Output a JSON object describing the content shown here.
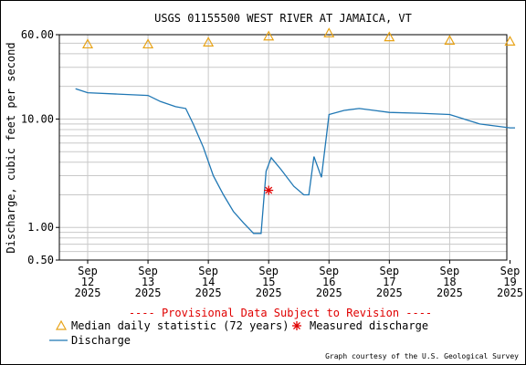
{
  "chart_data": {
    "type": "line",
    "title": "USGS 01155500 WEST RIVER AT JAMAICA, VT",
    "ylabel": "Discharge, cubic feet per second",
    "xlabel": "",
    "y_scale": "log",
    "ylim": [
      0.5,
      60
    ],
    "y_ticks": [
      "60.00",
      "10.00",
      "1.00",
      "0.50"
    ],
    "y_tick_values": [
      60,
      10,
      1,
      0.5
    ],
    "x_range": [
      "2025-09-12",
      "2025-09-19T10:00"
    ],
    "x_ticks": [
      {
        "date": "2025-09-12",
        "lines": [
          "Sep",
          "12",
          "2025"
        ]
      },
      {
        "date": "2025-09-13",
        "lines": [
          "Sep",
          "13",
          "2025"
        ]
      },
      {
        "date": "2025-09-14",
        "lines": [
          "Sep",
          "14",
          "2025"
        ]
      },
      {
        "date": "2025-09-15",
        "lines": [
          "Sep",
          "15",
          "2025"
        ]
      },
      {
        "date": "2025-09-16",
        "lines": [
          "Sep",
          "16",
          "2025"
        ]
      },
      {
        "date": "2025-09-17",
        "lines": [
          "Sep",
          "17",
          "2025"
        ]
      },
      {
        "date": "2025-09-18",
        "lines": [
          "Sep",
          "18",
          "2025"
        ]
      },
      {
        "date": "2025-09-19",
        "lines": [
          "Sep",
          "19",
          "2025"
        ]
      }
    ],
    "grid": true,
    "provisional_note": "---- Provisional Data Subject to Revision ----",
    "credit": "Graph courtesy of the U.S. Geological Survey",
    "legend_placement": "bottom",
    "series": [
      {
        "name": "Discharge",
        "color": "#1f77b4",
        "marker": "line",
        "points": [
          [
            "2025-09-11T19:10",
            19
          ],
          [
            "2025-09-12T00:00",
            17.5
          ],
          [
            "2025-09-12T12:00",
            17
          ],
          [
            "2025-09-13T00:00",
            16.5
          ],
          [
            "2025-09-13T05:00",
            14.5
          ],
          [
            "2025-09-13T11:00",
            13
          ],
          [
            "2025-09-13T15:00",
            12.5
          ],
          [
            "2025-09-13T18:00",
            9
          ],
          [
            "2025-09-13T22:00",
            5.5
          ],
          [
            "2025-09-14T02:00",
            3
          ],
          [
            "2025-09-14T06:00",
            2
          ],
          [
            "2025-09-14T10:00",
            1.4
          ],
          [
            "2025-09-14T14:00",
            1.1
          ],
          [
            "2025-09-14T18:00",
            0.88
          ],
          [
            "2025-09-14T21:00",
            0.88
          ],
          [
            "2025-09-14T23:00",
            3.3
          ],
          [
            "2025-09-15T01:00",
            4.4
          ],
          [
            "2025-09-15T05:00",
            3.4
          ],
          [
            "2025-09-15T10:00",
            2.4
          ],
          [
            "2025-09-15T14:00",
            2.0
          ],
          [
            "2025-09-15T16:00",
            2.0
          ],
          [
            "2025-09-15T18:00",
            4.5
          ],
          [
            "2025-09-15T21:00",
            2.9
          ],
          [
            "2025-09-16T00:00",
            11
          ],
          [
            "2025-09-16T06:00",
            12
          ],
          [
            "2025-09-16T12:00",
            12.5
          ],
          [
            "2025-09-16T18:00",
            12
          ],
          [
            "2025-09-17T00:00",
            11.5
          ],
          [
            "2025-09-17T12:00",
            11.3
          ],
          [
            "2025-09-18T00:00",
            11
          ],
          [
            "2025-09-18T12:00",
            9
          ],
          [
            "2025-09-19T00:00",
            8.3
          ],
          [
            "2025-09-19T02:00",
            8.3
          ]
        ]
      },
      {
        "name": "Median daily statistic (72 years)",
        "color": "#e8a317",
        "marker": "triangle",
        "points": [
          [
            "2025-09-12T00:00",
            49
          ],
          [
            "2025-09-13T00:00",
            49
          ],
          [
            "2025-09-14T00:00",
            51
          ],
          [
            "2025-09-15T00:00",
            58
          ],
          [
            "2025-09-16T00:00",
            62
          ],
          [
            "2025-09-17T00:00",
            57
          ],
          [
            "2025-09-18T00:00",
            53
          ],
          [
            "2025-09-19T00:00",
            52
          ]
        ]
      },
      {
        "name": "Measured discharge",
        "color": "#e00000",
        "marker": "star",
        "points": [
          [
            "2025-09-14T24:00",
            2.2
          ]
        ]
      }
    ]
  }
}
